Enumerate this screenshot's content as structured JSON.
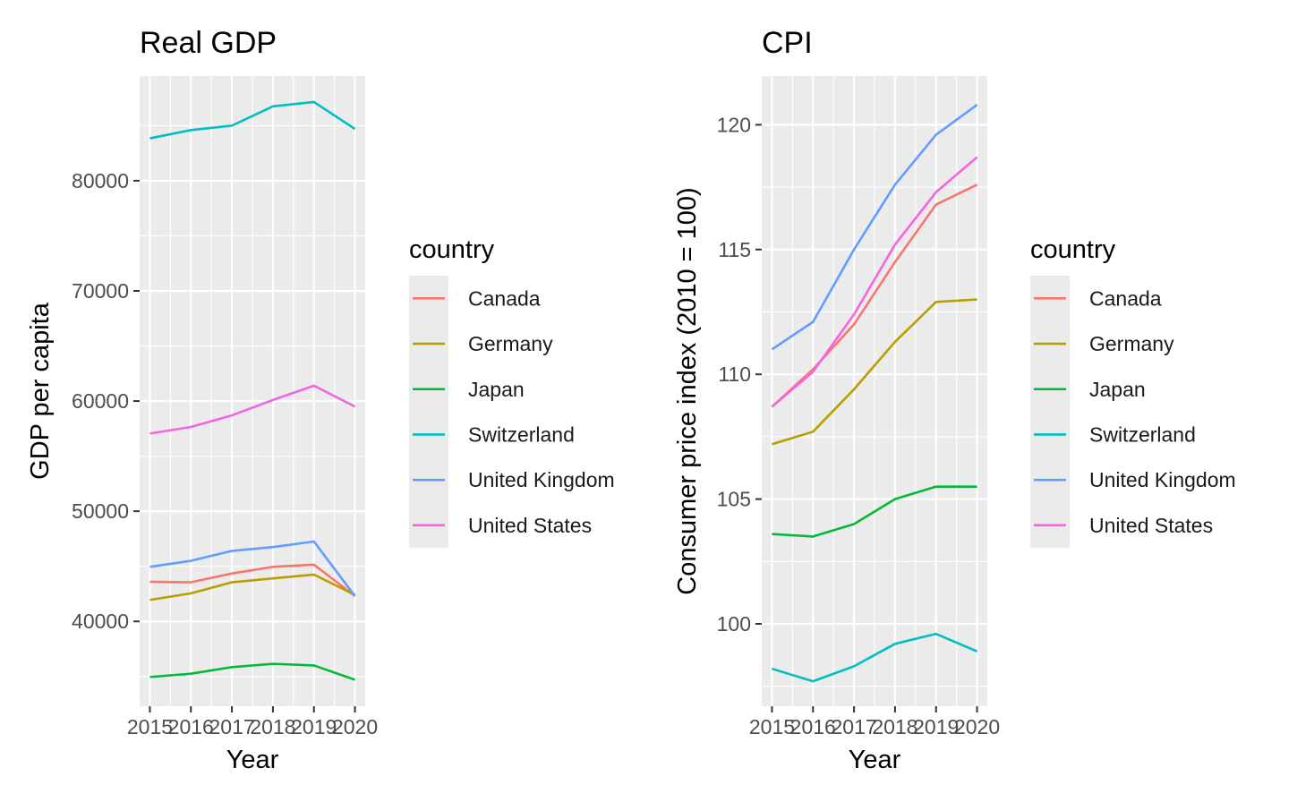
{
  "chart_data": [
    {
      "type": "line",
      "title": "Real GDP",
      "xlabel": "Year",
      "ylabel": "GDP per capita",
      "x": [
        2015,
        2016,
        2017,
        2018,
        2019,
        2020
      ],
      "x_tick_labels": [
        "2015",
        "2016",
        "2017",
        "2018",
        "2019",
        "2020"
      ],
      "y_ticks": [
        40000,
        50000,
        60000,
        70000,
        80000
      ],
      "y_tick_labels": [
        "40000",
        "50000",
        "60000",
        "70000",
        "80000"
      ],
      "xlim": [
        2014.75,
        2020.25
      ],
      "ylim": [
        32300,
        89500
      ],
      "grid": true,
      "legend_title": "country",
      "legend_position": "right",
      "series": [
        {
          "name": "Canada",
          "color": "#F8766D",
          "values": [
            43600,
            43550,
            44350,
            44950,
            45150,
            42300
          ]
        },
        {
          "name": "Germany",
          "color": "#B79F00",
          "values": [
            41950,
            42550,
            43550,
            43900,
            44250,
            42400
          ]
        },
        {
          "name": "Japan",
          "color": "#00BA38",
          "values": [
            34950,
            35250,
            35850,
            36150,
            36000,
            34700
          ]
        },
        {
          "name": "Switzerland",
          "color": "#00BFC4",
          "values": [
            83850,
            84600,
            85000,
            86750,
            87150,
            84700
          ]
        },
        {
          "name": "United Kingdom",
          "color": "#619CFF",
          "values": [
            44950,
            45500,
            46400,
            46750,
            47250,
            42300
          ]
        },
        {
          "name": "United States",
          "color": "#F564E3",
          "values": [
            57050,
            57650,
            58700,
            60100,
            61400,
            59500
          ]
        }
      ]
    },
    {
      "type": "line",
      "title": "CPI",
      "xlabel": "Year",
      "ylabel": "Consumer price index (2010 = 100)",
      "x": [
        2015,
        2016,
        2017,
        2018,
        2019,
        2020
      ],
      "x_tick_labels": [
        "2015",
        "2016",
        "2017",
        "2018",
        "2019",
        "2020"
      ],
      "y_ticks": [
        100,
        105,
        110,
        115,
        120
      ],
      "y_tick_labels": [
        "100",
        "105",
        "110",
        "115",
        "120"
      ],
      "xlim": [
        2014.75,
        2020.25
      ],
      "ylim": [
        96.7,
        121.95
      ],
      "grid": true,
      "legend_title": "country",
      "legend_position": "right",
      "series": [
        {
          "name": "Canada",
          "color": "#F8766D",
          "values": [
            108.7,
            110.2,
            112.0,
            114.5,
            116.8,
            117.6
          ]
        },
        {
          "name": "Germany",
          "color": "#B79F00",
          "values": [
            107.2,
            107.7,
            109.4,
            111.3,
            112.9,
            113.0
          ]
        },
        {
          "name": "Japan",
          "color": "#00BA38",
          "values": [
            103.6,
            103.5,
            104.0,
            105.0,
            105.5,
            105.5
          ]
        },
        {
          "name": "Switzerland",
          "color": "#00BFC4",
          "values": [
            98.2,
            97.7,
            98.3,
            99.2,
            99.6,
            98.9
          ]
        },
        {
          "name": "United Kingdom",
          "color": "#619CFF",
          "values": [
            111.0,
            112.1,
            115.0,
            117.6,
            119.6,
            120.8
          ]
        },
        {
          "name": "United States",
          "color": "#F564E3",
          "values": [
            108.7,
            110.1,
            112.4,
            115.2,
            117.3,
            118.7
          ]
        }
      ]
    }
  ]
}
